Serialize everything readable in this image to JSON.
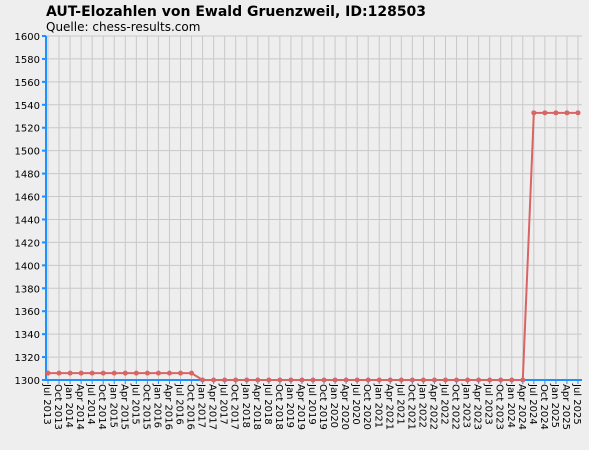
{
  "chart_data": {
    "type": "line",
    "title": "AUT-Elozahlen von Ewald Gruenzweil, ID:128503",
    "subtitle": "Quelle: chess-results.com",
    "categories": [
      "Jul 2013",
      "Oct 2013",
      "Jan 2014",
      "Apr 2014",
      "Jul 2014",
      "Oct 2014",
      "Jan 2015",
      "Apr 2015",
      "Jul 2015",
      "Oct 2015",
      "Jan 2016",
      "Apr 2016",
      "Jul 2016",
      "Oct 2016",
      "Jan 2017",
      "Apr 2017",
      "Jul 2017",
      "Oct 2017",
      "Jan 2018",
      "Apr 2018",
      "Jul 2018",
      "Oct 2018",
      "Jan 2019",
      "Apr 2019",
      "Jul 2019",
      "Oct 2019",
      "Jan 2020",
      "Apr 2020",
      "Jul 2020",
      "Oct 2020",
      "Jan 2021",
      "Apr 2021",
      "Jul 2021",
      "Oct 2021",
      "Jan 2022",
      "Apr 2022",
      "Jul 2022",
      "Oct 2022",
      "Jan 2023",
      "Apr 2023",
      "Jul 2023",
      "Oct 2023",
      "Jan 2024",
      "Apr 2024",
      "Jul 2024",
      "Oct 2024",
      "Jan 2025",
      "Apr 2025",
      "Jul 2025"
    ],
    "series": [
      {
        "color": "#d96464",
        "values": [
          1306,
          1306,
          1306,
          1306,
          1306,
          1306,
          1306,
          1306,
          1306,
          1306,
          1306,
          1306,
          1306,
          1306,
          1300,
          1300,
          1300,
          1300,
          1300,
          1300,
          1300,
          1300,
          1300,
          1300,
          1300,
          1300,
          1300,
          1300,
          1300,
          1300,
          1300,
          1300,
          1300,
          1300,
          1300,
          1300,
          1300,
          1300,
          1300,
          1300,
          1300,
          1300,
          1300,
          1300,
          1533,
          1533,
          1533,
          1533,
          1533
        ]
      }
    ],
    "ylim": [
      1300,
      1600
    ],
    "yticks": [
      1300,
      1320,
      1340,
      1360,
      1380,
      1400,
      1420,
      1440,
      1460,
      1480,
      1500,
      1520,
      1540,
      1560,
      1580,
      1600
    ],
    "grid": true
  }
}
